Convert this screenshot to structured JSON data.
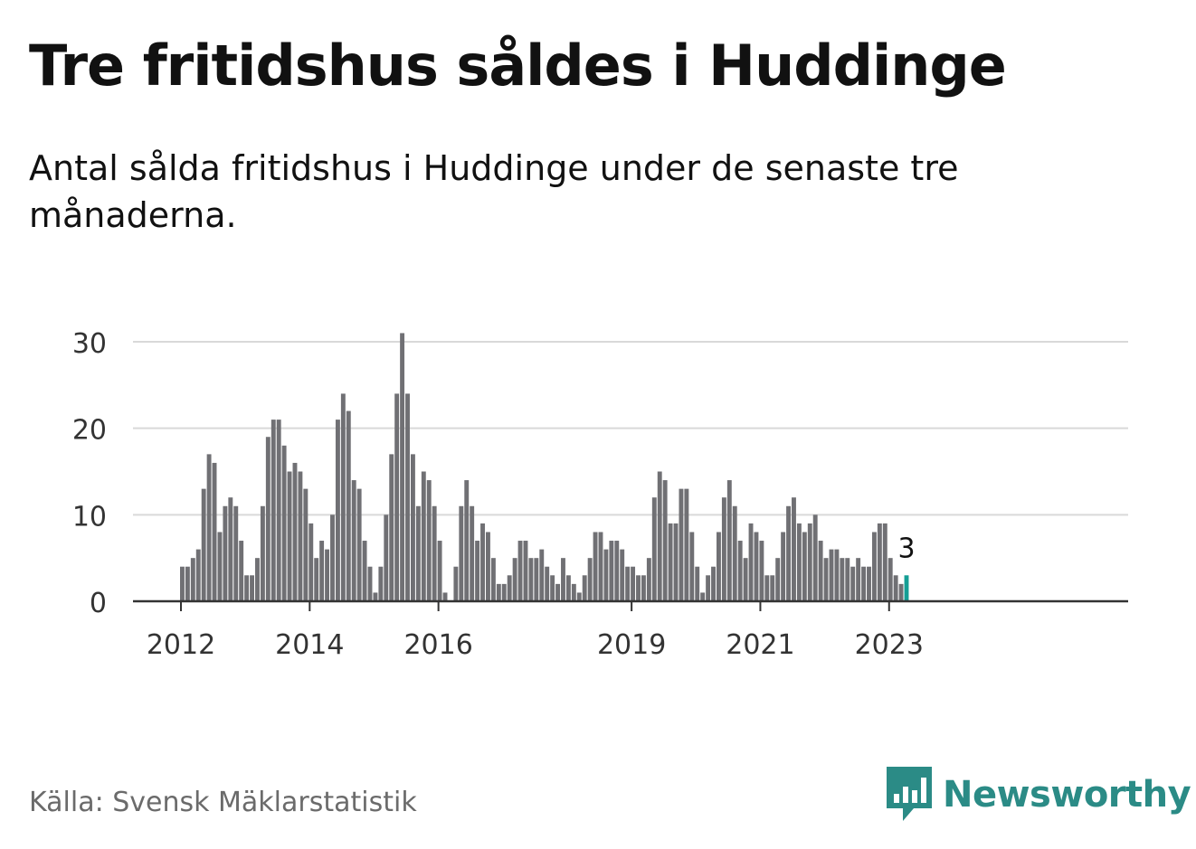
{
  "header": {
    "title": "Tre fritidshus såldes i Huddinge",
    "subtitle": "Antal sålda fritidshus i Huddinge under de senaste tre månaderna."
  },
  "footer": {
    "source": "Källa: Svensk Mäklarstatistik",
    "brand": "Newsworthy",
    "brand_color": "#2b8b86"
  },
  "chart_data": {
    "type": "bar",
    "title": "Tre fritidshus såldes i Huddinge",
    "subtitle": "Antal sålda fritidshus i Huddinge under de senaste tre månaderna.",
    "xlabel": "",
    "ylabel": "",
    "ylim": [
      0,
      30
    ],
    "yticks": [
      0,
      10,
      20,
      30
    ],
    "xtick_labels": [
      "2012",
      "2014",
      "2016",
      "2019",
      "2021",
      "2023"
    ],
    "grid": true,
    "legend": "none",
    "bar_color": "#707074",
    "highlight_color": "#159e95",
    "highlight_label": "3",
    "categories": [
      "2012-01",
      "2012-02",
      "2012-03",
      "2012-04",
      "2012-05",
      "2012-06",
      "2012-07",
      "2012-08",
      "2012-09",
      "2012-10",
      "2012-11",
      "2012-12",
      "2013-01",
      "2013-02",
      "2013-03",
      "2013-04",
      "2013-05",
      "2013-06",
      "2013-07",
      "2013-08",
      "2013-09",
      "2013-10",
      "2013-11",
      "2013-12",
      "2014-01",
      "2014-02",
      "2014-03",
      "2014-04",
      "2014-05",
      "2014-06",
      "2014-07",
      "2014-08",
      "2014-09",
      "2014-10",
      "2014-11",
      "2014-12",
      "2015-01",
      "2015-02",
      "2015-03",
      "2015-04",
      "2015-05",
      "2015-06",
      "2015-07",
      "2015-08",
      "2015-09",
      "2015-10",
      "2015-11",
      "2015-12",
      "2016-01",
      "2016-02",
      "2016-03",
      "2016-04",
      "2016-05",
      "2016-06",
      "2016-07",
      "2016-08",
      "2016-09",
      "2016-10",
      "2016-11",
      "2016-12",
      "2017-01",
      "2017-02",
      "2017-03",
      "2017-04",
      "2017-05",
      "2017-06",
      "2017-07",
      "2017-08",
      "2017-09",
      "2017-10",
      "2017-11",
      "2017-12",
      "2018-01",
      "2018-02",
      "2018-03",
      "2018-04",
      "2018-05",
      "2018-06",
      "2018-07",
      "2018-08",
      "2018-09",
      "2018-10",
      "2018-11",
      "2018-12",
      "2019-01",
      "2019-02",
      "2019-03",
      "2019-04",
      "2019-05",
      "2019-06",
      "2019-07",
      "2019-08",
      "2019-09",
      "2019-10",
      "2019-11",
      "2019-12",
      "2020-01",
      "2020-02",
      "2020-03",
      "2020-04",
      "2020-05",
      "2020-06",
      "2020-07",
      "2020-08",
      "2020-09",
      "2020-10",
      "2020-11",
      "2020-12",
      "2021-01",
      "2021-02",
      "2021-03",
      "2021-04",
      "2021-05",
      "2021-06",
      "2021-07",
      "2021-08",
      "2021-09",
      "2021-10",
      "2021-11",
      "2021-12",
      "2022-01",
      "2022-02",
      "2022-03",
      "2022-04",
      "2022-05",
      "2022-06",
      "2022-07",
      "2022-08",
      "2022-09",
      "2022-10",
      "2022-11",
      "2022-12",
      "2023-01",
      "2023-02",
      "2023-03",
      "2023-04"
    ],
    "values": [
      4,
      4,
      5,
      6,
      13,
      17,
      16,
      8,
      11,
      12,
      11,
      7,
      3,
      3,
      5,
      11,
      19,
      21,
      21,
      18,
      15,
      16,
      15,
      13,
      9,
      5,
      7,
      6,
      10,
      21,
      24,
      22,
      14,
      13,
      7,
      4,
      1,
      4,
      10,
      17,
      24,
      31,
      24,
      17,
      11,
      15,
      14,
      11,
      7,
      1,
      0,
      4,
      11,
      14,
      11,
      7,
      9,
      8,
      5,
      2,
      2,
      3,
      5,
      7,
      7,
      5,
      5,
      6,
      4,
      3,
      2,
      5,
      3,
      2,
      1,
      3,
      5,
      8,
      8,
      6,
      7,
      7,
      6,
      4,
      4,
      3,
      3,
      5,
      12,
      15,
      14,
      9,
      9,
      13,
      13,
      8,
      4,
      1,
      3,
      4,
      8,
      12,
      14,
      11,
      7,
      5,
      9,
      8,
      7,
      3,
      3,
      5,
      8,
      11,
      12,
      9,
      8,
      9,
      10,
      7,
      5,
      6,
      6,
      5,
      5,
      4,
      5,
      4,
      4,
      8,
      9,
      9,
      5,
      3,
      2,
      3
    ]
  }
}
